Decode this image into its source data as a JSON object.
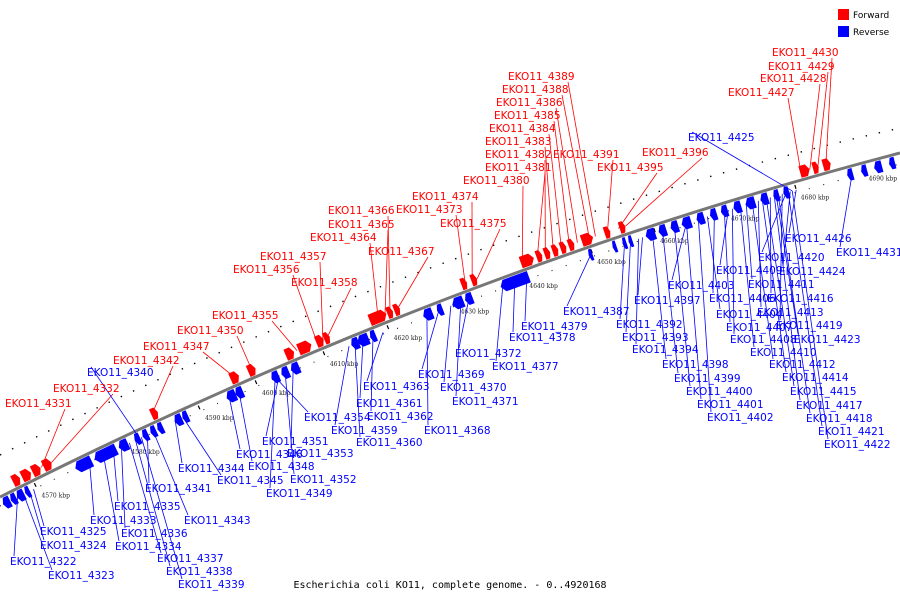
{
  "colors": {
    "forward": "#ff0000",
    "reverse": "#0000ff",
    "backbone": "#777777"
  },
  "legend": [
    {
      "label": "Forward",
      "color": "#ff0000"
    },
    {
      "label": "Reverse",
      "color": "#0000ff"
    }
  ],
  "caption": "Escherichia coli KO11, complete genome. - 0..4920168",
  "ticks": [
    "4570 kbp",
    "4580 kbp",
    "4590 kbp",
    "4600 kbp",
    "4610 kbp",
    "4620 kbp",
    "4630 kbp",
    "4640 kbp",
    "4650 kbp",
    "4660 kbp",
    "4670 kbp",
    "4680 kbp",
    "4690 kbp"
  ],
  "forward_genes": [
    "EKO11_4331",
    "EKO11_4332",
    "EKO11_4342",
    "EKO11_4347",
    "EKO11_4350",
    "EKO11_4355",
    "EKO11_4356",
    "EKO11_4357",
    "EKO11_4358",
    "EKO11_4364",
    "EKO11_4365",
    "EKO11_4366",
    "EKO11_4367",
    "EKO11_4373",
    "EKO11_4374",
    "EKO11_4375",
    "EKO11_4380",
    "EKO11_4381",
    "EKO11_4382",
    "EKO11_4383",
    "EKO11_4384",
    "EKO11_4385",
    "EKO11_4386",
    "EKO11_4388",
    "EKO11_4389",
    "EKO11_4391",
    "EKO11_4395",
    "EKO11_4396",
    "EKO11_4427",
    "EKO11_4428",
    "EKO11_4429",
    "EKO11_4430"
  ],
  "reverse_genes": [
    "EKO11_4322",
    "EKO11_4323",
    "EKO11_4324",
    "EKO11_4325",
    "EKO11_4333",
    "EKO11_4334",
    "EKO11_4335",
    "EKO11_4336",
    "EKO11_4337",
    "EKO11_4338",
    "EKO11_4339",
    "EKO11_4340",
    "EKO11_4341",
    "EKO11_4343",
    "EKO11_4344",
    "EKO11_4345",
    "EKO11_4346",
    "EKO11_4348",
    "EKO11_4349",
    "EKO11_4351",
    "EKO11_4352",
    "EKO11_4353",
    "EKO11_4354",
    "EKO11_4359",
    "EKO11_4360",
    "EKO11_4361",
    "EKO11_4362",
    "EKO11_4363",
    "EKO11_4368",
    "EKO11_4369",
    "EKO11_4370",
    "EKO11_4371",
    "EKO11_4372",
    "EKO11_4377",
    "EKO11_4378",
    "EKO11_4379",
    "EKO11_4387",
    "EKO11_4392",
    "EKO11_4393",
    "EKO11_4394",
    "EKO11_4397",
    "EKO11_4398",
    "EKO11_4399",
    "EKO11_4400",
    "EKO11_4401",
    "EKO11_4402",
    "EKO11_4403",
    "EKO11_4404",
    "EKO11_4406",
    "EKO11_4407",
    "EKO11_4408",
    "EKO11_4409",
    "EKO11_4410",
    "EKO11_4411",
    "EKO11_4412",
    "EKO11_4413",
    "EKO11_4414",
    "EKO11_4415",
    "EKO11_4416",
    "EKO11_4417",
    "EKO11_4418",
    "EKO11_4419",
    "EKO11_4420",
    "EKO11_4421",
    "EKO11_4422",
    "EKO11_4423",
    "EKO11_4424",
    "EKO11_4425",
    "EKO11_4426",
    "EKO11_4431"
  ]
}
